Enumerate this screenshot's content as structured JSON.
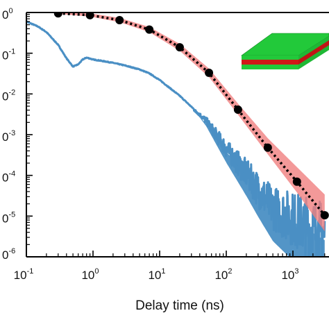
{
  "chart_data": {
    "type": "line",
    "xlabel": "Delay time (ns)",
    "ylabel": "",
    "x_scale": "log",
    "y_scale": "log",
    "xlim": [
      0.1,
      3000
    ],
    "ylim": [
      1e-06,
      1
    ],
    "x_ticks": [
      {
        "base": "10",
        "exp": "-1",
        "value": 0.1
      },
      {
        "base": "10",
        "exp": "0",
        "value": 1
      },
      {
        "base": "10",
        "exp": "1",
        "value": 10
      },
      {
        "base": "10",
        "exp": "2",
        "value": 100
      },
      {
        "base": "10",
        "exp": "3",
        "value": 1000
      }
    ],
    "y_ticks": [
      {
        "base": "0",
        "exp": "0",
        "value": 1
      },
      {
        "base": "0",
        "exp": "-1",
        "value": 0.1
      },
      {
        "base": "0",
        "exp": "-2",
        "value": 0.01
      },
      {
        "base": "0",
        "exp": "-3",
        "value": 0.001
      },
      {
        "base": "0",
        "exp": "-4",
        "value": 0.0001
      },
      {
        "base": "0",
        "exp": "-5",
        "value": 1e-05
      },
      {
        "base": "0",
        "exp": "-6",
        "value": 1e-06
      }
    ],
    "colors": {
      "measured": "#4a8fc4",
      "model_band": "#f08080",
      "model_line": "#000000",
      "inset_top": "#22c93a",
      "inset_middle": "#d01818",
      "inset_bottom": "#22c93a"
    },
    "series": [
      {
        "style": "noisy-line",
        "color": "#4a8fc4",
        "x": [
          0.1,
          0.15,
          0.2,
          0.3,
          0.4,
          0.5,
          0.6,
          0.7,
          0.8,
          0.9,
          1.0,
          1.5,
          2,
          3,
          5,
          7,
          10,
          20,
          50,
          100,
          200,
          300,
          500,
          1000,
          2000,
          3000
        ],
        "y": [
          0.6,
          0.45,
          0.33,
          0.16,
          0.075,
          0.047,
          0.053,
          0.07,
          0.078,
          0.074,
          0.07,
          0.063,
          0.058,
          0.05,
          0.04,
          0.032,
          0.022,
          0.009,
          0.0022,
          0.00045,
          0.00011,
          4.5e-05,
          1.6e-05,
          8.5e-06,
          4.5e-06,
          3e-06
        ]
      },
      {
        "style": "markers",
        "color": "#000000",
        "x": [
          0.3,
          0.9,
          2.5,
          7,
          20,
          55,
          150,
          420,
          1150,
          3000
        ],
        "y": [
          0.95,
          0.86,
          0.65,
          0.38,
          0.14,
          0.033,
          0.0041,
          0.00048,
          7e-05,
          1.05e-05
        ]
      },
      {
        "style": "dotted-line-with-band",
        "color": "#000000",
        "x": [
          0.3,
          0.9,
          2.5,
          7,
          20,
          55,
          150,
          420,
          1150,
          3000
        ],
        "y": [
          0.95,
          0.86,
          0.65,
          0.38,
          0.14,
          0.033,
          0.0041,
          0.00048,
          7e-05,
          1.05e-05
        ],
        "band_upper": [
          1.0,
          0.95,
          0.74,
          0.44,
          0.17,
          0.042,
          0.0058,
          0.00082,
          0.00016,
          3.4e-05
        ],
        "band_lower": [
          0.92,
          0.8,
          0.58,
          0.33,
          0.115,
          0.026,
          0.0031,
          0.00033,
          3.8e-05,
          4.2e-06
        ]
      }
    ]
  }
}
